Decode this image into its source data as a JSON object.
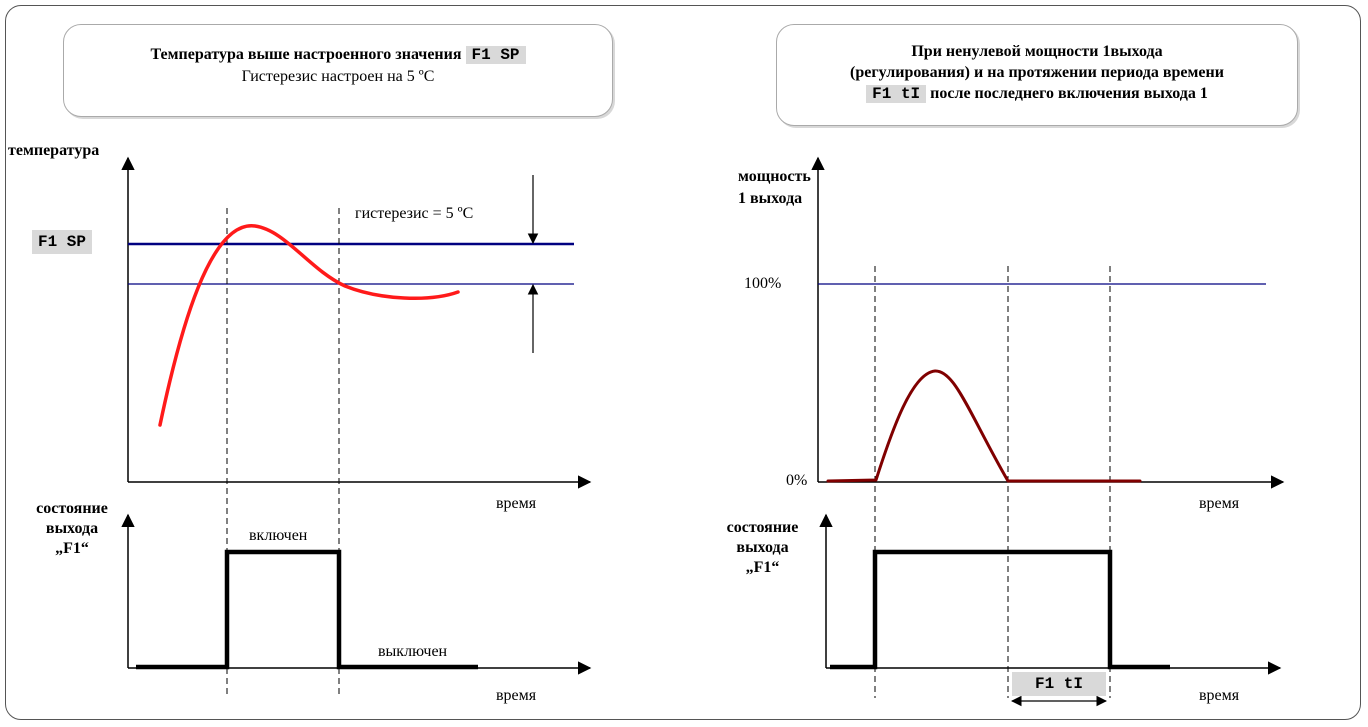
{
  "left": {
    "title_line1": "Температура выше настроенного значения",
    "title_code": "F1  SP",
    "title_line2": "Гистерезис настроен на 5 ºC",
    "y_axis_label": "температура",
    "setpoint_label": "F1  SP",
    "hysteresis_label": "гистерезис = 5 ºC",
    "time_label_top": "время",
    "state_label": [
      "состояние",
      "выхода",
      "„F1“"
    ],
    "on_label": "включен",
    "off_label": "выключен",
    "time_label_bottom": "время"
  },
  "right": {
    "title_line1": "При ненулевой мощности 1выхода",
    "title_line2": "(регулирования) и на протяжении периода времени",
    "title_code": "F1  tI",
    "title_line3": "после последнего включения выхода 1",
    "y_axis_label": [
      "мощность",
      "1 выхода"
    ],
    "tick_100": "100%",
    "tick_0": "0%",
    "time_label_top": "время",
    "state_label": [
      "состояние",
      "выхода",
      "„F1“"
    ],
    "interval_label": "F1  tI",
    "time_label_bottom": "время"
  },
  "colors": {
    "temperature_curve": "#ff1a1a",
    "power_curve": "#800000",
    "setpoint_line": "#000080",
    "code_background": "#d9d9d9"
  }
}
